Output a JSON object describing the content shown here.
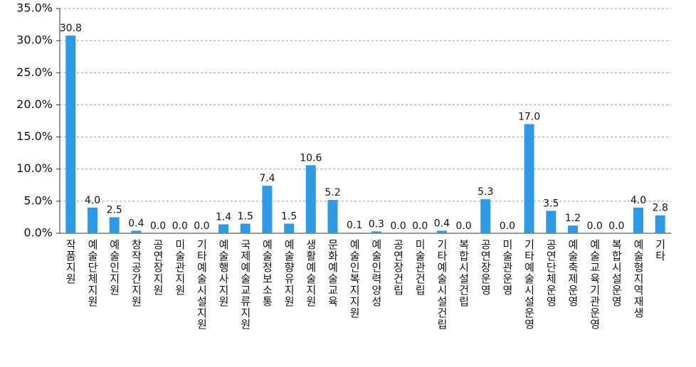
{
  "chart_data": {
    "type": "bar",
    "categories": [
      "작품지원",
      "예술단체지원",
      "예술인지원",
      "창작공간지원",
      "공연장지원",
      "미술관지원",
      "기타예술시설지원",
      "예술행사지원",
      "국제예술교류지원",
      "예술정보소통",
      "예술향유지원",
      "생활예술지원",
      "문화예술교육",
      "예술인복지지원",
      "예술인력양성",
      "공연장건립",
      "미술관건립",
      "기타예술시설건립",
      "복합시설건립",
      "공연장운영",
      "미술관운영",
      "기타예술시설운영",
      "공연단체운영",
      "예술축제운영",
      "예술교육기관운영",
      "복합시설운영",
      "예술형지역재생",
      "기타"
    ],
    "values": [
      30.8,
      4.0,
      2.5,
      0.4,
      0.0,
      0.0,
      0.0,
      1.4,
      1.5,
      7.4,
      1.5,
      10.6,
      5.2,
      0.1,
      0.3,
      0.0,
      0.0,
      0.4,
      0.0,
      5.3,
      0.0,
      17.0,
      3.5,
      1.2,
      0.0,
      0.0,
      4.0,
      2.8
    ],
    "value_labels": [
      "30.8",
      "4.0",
      "2.5",
      "0.4",
      "0.0",
      "0.0",
      "0.0",
      "1.4",
      "1.5",
      "7.4",
      "1.5",
      "10.6",
      "5.2",
      "0.1",
      "0.3",
      "0.0",
      "0.0",
      "0.4",
      "0.0",
      "5.3",
      "0.0",
      "17.0",
      "3.5",
      "1.2",
      "0.0",
      "0.0",
      "4.0",
      "2.8"
    ],
    "color": "#2e9ae6",
    "ylim": [
      0,
      35
    ],
    "yticks": [
      {
        "value": 0,
        "label": "0.0%"
      },
      {
        "value": 5,
        "label": "5.0%"
      },
      {
        "value": 10,
        "label": "10.0%"
      },
      {
        "value": 15,
        "label": "15.0%"
      },
      {
        "value": 20,
        "label": "20.0%"
      },
      {
        "value": 25,
        "label": "25.0%"
      },
      {
        "value": 30,
        "label": "30.0%"
      },
      {
        "value": 35,
        "label": "35.0%"
      }
    ],
    "grid": true
  }
}
